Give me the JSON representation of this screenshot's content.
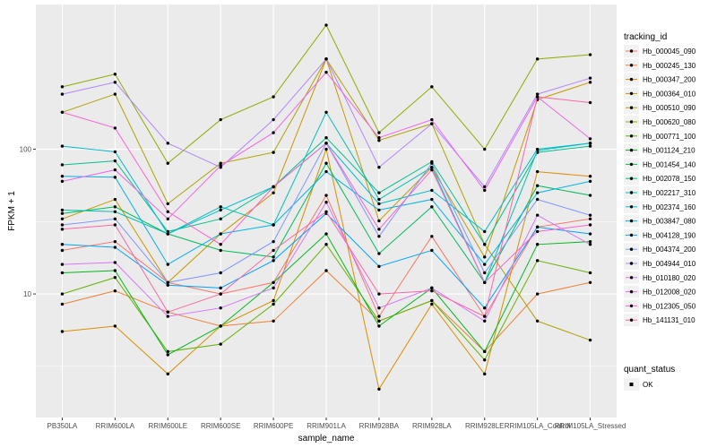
{
  "chart_data": {
    "type": "line",
    "xlabel": "sample_name",
    "ylabel": "FPKM + 1",
    "y_scale": "log10",
    "ylim": [
      1.4,
      1000
    ],
    "y_ticks": [
      10,
      100
    ],
    "y_tick_labels": [
      "10",
      "100"
    ],
    "grid": true,
    "panel_background": "#ebebeb",
    "grid_color": "#ffffff",
    "legend_placement": "right",
    "categories": [
      "PB350LA",
      "RRIM600LA",
      "RRIM600LE",
      "RRIM600SE",
      "RRIM600PE",
      "RRIM901LA",
      "RRIM928BA",
      "RRIM928LA",
      "RRIM928LE",
      "RRIM105LA_Control",
      "RRIM105LA_Stressed"
    ],
    "color_legend": {
      "title": "tracking_id"
    },
    "shape_legend": {
      "title": "quant_status",
      "items": [
        "OK"
      ]
    },
    "series": [
      {
        "name": "Hb_000045_090",
        "color": "#f8766d",
        "values": [
          20,
          23,
          12,
          10,
          12,
          48,
          7,
          25,
          7,
          29,
          33
        ]
      },
      {
        "name": "Hb_000245_130",
        "color": "#ec8239",
        "values": [
          8.5,
          10.5,
          7.5,
          6,
          6.5,
          14.5,
          6.5,
          9,
          4,
          10,
          12
        ]
      },
      {
        "name": "Hb_000347_200",
        "color": "#db8e00",
        "values": [
          5.5,
          6,
          2.8,
          6,
          9,
          100,
          2.2,
          8.5,
          2.8,
          70,
          65
        ]
      },
      {
        "name": "Hb_000364_010",
        "color": "#c79800",
        "values": [
          33,
          45,
          12,
          26,
          50,
          420,
          32,
          75,
          18,
          220,
          290
        ]
      },
      {
        "name": "Hb_000510_090",
        "color": "#aea200",
        "values": [
          180,
          240,
          42,
          80,
          95,
          420,
          115,
          150,
          22,
          6.5,
          4.8
        ]
      },
      {
        "name": "Hb_000620_080",
        "color": "#8faa00",
        "values": [
          270,
          330,
          80,
          160,
          230,
          720,
          130,
          270,
          100,
          420,
          450
        ]
      },
      {
        "name": "Hb_000771_100",
        "color": "#64b200",
        "values": [
          10,
          13,
          4,
          4.5,
          8.5,
          22,
          6.5,
          9,
          3.5,
          17,
          14
        ]
      },
      {
        "name": "Hb_001124_210",
        "color": "#00b81b",
        "values": [
          14,
          14.5,
          3.8,
          6,
          12,
          26,
          6,
          11,
          4,
          22,
          23
        ]
      },
      {
        "name": "Hb_001454_140",
        "color": "#00bd5c",
        "values": [
          36,
          40,
          26,
          20,
          18,
          80,
          19,
          40,
          12,
          56,
          48
        ]
      },
      {
        "name": "Hb_002078_150",
        "color": "#00c08e",
        "values": [
          78,
          83,
          27,
          33,
          55,
          120,
          50,
          82,
          22,
          95,
          105
        ]
      },
      {
        "name": "Hb_002217_310",
        "color": "#00c1b2",
        "values": [
          38,
          37,
          26,
          40,
          30,
          180,
          45,
          75,
          12,
          98,
          110
        ]
      },
      {
        "name": "Hb_002374_160",
        "color": "#00bcd1",
        "values": [
          105,
          96,
          26,
          38,
          55,
          110,
          42,
          52,
          27,
          100,
          110
        ]
      },
      {
        "name": "Hb_003847_080",
        "color": "#00b2ea",
        "values": [
          65,
          64,
          16,
          26,
          30,
          70,
          38,
          45,
          16,
          50,
          60
        ]
      },
      {
        "name": "Hb_004128_190",
        "color": "#00a3ff",
        "values": [
          22,
          21,
          11.5,
          11,
          17,
          36,
          15.5,
          20,
          8,
          29,
          26
        ]
      },
      {
        "name": "Hb_004374_200",
        "color": "#7f96ff",
        "values": [
          30,
          33,
          12,
          14,
          23,
          110,
          25,
          80,
          14,
          45,
          35
        ]
      },
      {
        "name": "Hb_004944_010",
        "color": "#b385ff",
        "values": [
          240,
          290,
          110,
          75,
          160,
          420,
          75,
          150,
          55,
          240,
          310
        ]
      },
      {
        "name": "Hb_010180_020",
        "color": "#d874fd",
        "values": [
          16,
          16.5,
          7,
          8,
          11,
          43,
          8,
          11,
          6.5,
          35,
          22
        ]
      },
      {
        "name": "Hb_012008_020",
        "color": "#ef67eb",
        "values": [
          60,
          72,
          33,
          77,
          130,
          340,
          120,
          160,
          52,
          230,
          118
        ]
      },
      {
        "name": "Hb_012305_050",
        "color": "#fd61d1",
        "values": [
          180,
          140,
          37,
          22,
          55,
          110,
          28,
          72,
          12,
          27,
          30
        ]
      },
      {
        "name": "Hb_141131_010",
        "color": "#ff66a8",
        "values": [
          28,
          30,
          7.5,
          10,
          20,
          37,
          10,
          10.5,
          7,
          230,
          210
        ]
      }
    ]
  }
}
